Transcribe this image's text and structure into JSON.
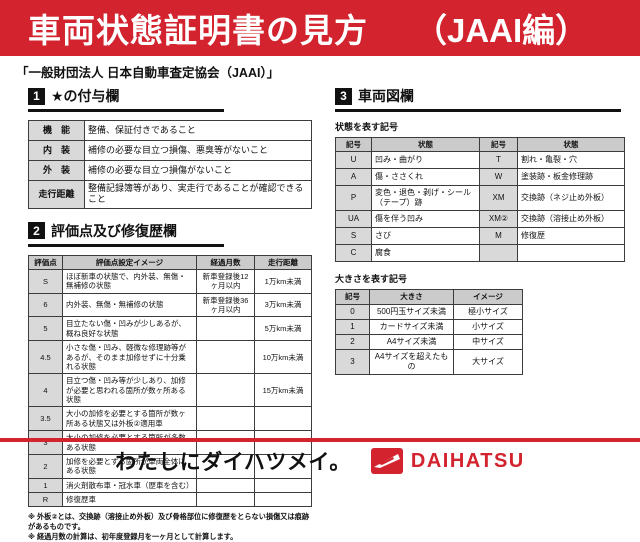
{
  "header": {
    "title": "車両状態証明書の見方",
    "title_suffix": "（JAAI編）",
    "accent_color": "#d2232e"
  },
  "subtitle": "「一般財団法人 日本自動車査定協会（JAAI）」",
  "sections": {
    "star": {
      "number": "1",
      "title": "★の付与欄",
      "rows": [
        [
          "機　能",
          "整備、保証付きであること"
        ],
        [
          "内　装",
          "補修の必要な目立つ損傷、悪臭等がないこと"
        ],
        [
          "外　装",
          "補修の必要な目立つ損傷がないこと"
        ],
        [
          "走行距離",
          "整備記録簿等があり、実走行であることが確認できること"
        ]
      ]
    },
    "grade": {
      "number": "2",
      "title": "評価点及び修復歴欄",
      "headers": [
        "評価点",
        "評価点設定イメージ",
        "経過月数",
        "走行距離"
      ],
      "rows": [
        [
          "S",
          "ほぼ新車の状態で、内外装、無傷・無補修の状態",
          "新車登録後12ヶ月以内",
          "1万km未満"
        ],
        [
          "6",
          "内外装、無傷・無補修の状態",
          "新車登録後36ヶ月以内",
          "3万km未満"
        ],
        [
          "5",
          "目立たない傷・凹みが少しあるが、概ね良好な状態",
          "",
          "5万km未満"
        ],
        [
          "4.5",
          "小さな傷・凹み、軽微な修理跡等があるが、そのまま加修せずに十分乗れる状態",
          "",
          "10万km未満"
        ],
        [
          "4",
          "目立つ傷・凹み等が少しあり、加修が必要と思われる箇所が数ヶ所ある状態",
          "",
          "15万km未満"
        ],
        [
          "3.5",
          "大小の加修を必要とする箇所が数ヶ所ある状態又は外板②適用車",
          "",
          ""
        ],
        [
          "3",
          "大小の加修を必要とする箇所が多数ある状態",
          "",
          ""
        ],
        [
          "2",
          "加修を必要とする箇所が車両全体にある状態",
          "",
          ""
        ],
        [
          "1",
          "消火剤散布車・冠水車（歴車を含む）",
          "",
          ""
        ],
        [
          "R",
          "修復歴車",
          "",
          ""
        ]
      ],
      "notes": [
        "※ 外板②とは、交換跡（溶接止め外板）及び骨格部位に修復歴をとらない損傷又は痕跡があるものです。",
        "※ 経過月数の計算は、初年度登録月を一ヶ月として計算します。"
      ]
    },
    "diagram": {
      "number": "3",
      "title": "車両図欄",
      "condition": {
        "label": "状態を表す記号",
        "headers": [
          "記号",
          "状態",
          "記号",
          "状態"
        ],
        "rows": [
          [
            "U",
            "凹み・曲がり",
            "T",
            "割れ・亀裂・穴"
          ],
          [
            "A",
            "傷・ささくれ",
            "W",
            "塗装跡・板金修理跡"
          ],
          [
            "P",
            "変色・退色・剥げ・シール（テープ）跡",
            "XM",
            "交換跡（ネジ止め外板）"
          ],
          [
            "UA",
            "傷を伴う凹み",
            "XM②",
            "交換跡（溶接止め外板）"
          ],
          [
            "S",
            "さび",
            "M",
            "修復歴"
          ],
          [
            "C",
            "腐食",
            "",
            ""
          ]
        ]
      },
      "size": {
        "label": "大きさを表す記号",
        "headers": [
          "記号",
          "大きさ",
          "イメージ"
        ],
        "rows": [
          [
            "0",
            "500円玉サイズ未満",
            "極小サイズ"
          ],
          [
            "1",
            "カードサイズ未満",
            "小サイズ"
          ],
          [
            "2",
            "A4サイズ未満",
            "中サイズ"
          ],
          [
            "3",
            "A4サイズを超えたもの",
            "大サイズ"
          ]
        ]
      }
    }
  },
  "footer": {
    "slogan": "わたしにダイハツメイ。",
    "brand": "DAIHATSU",
    "brand_color": "#d2232e"
  }
}
